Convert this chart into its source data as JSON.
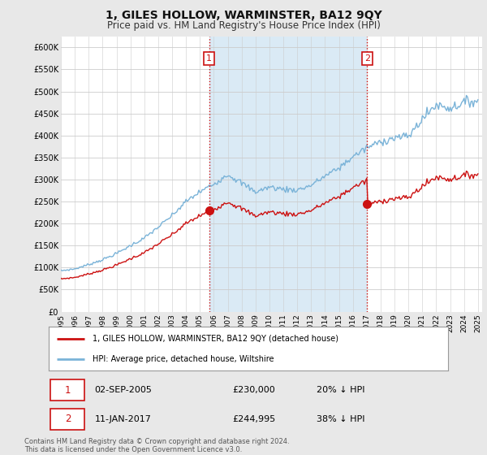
{
  "title": "1, GILES HOLLOW, WARMINSTER, BA12 9QY",
  "subtitle": "Price paid vs. HM Land Registry's House Price Index (HPI)",
  "title_fontsize": 10,
  "subtitle_fontsize": 8.5,
  "ylabel_ticks": [
    "£0",
    "£50K",
    "£100K",
    "£150K",
    "£200K",
    "£250K",
    "£300K",
    "£350K",
    "£400K",
    "£450K",
    "£500K",
    "£550K",
    "£600K"
  ],
  "ytick_values": [
    0,
    50000,
    100000,
    150000,
    200000,
    250000,
    300000,
    350000,
    400000,
    450000,
    500000,
    550000,
    600000
  ],
  "ylim": [
    0,
    625000
  ],
  "hpi_color": "#7ab3d8",
  "hpi_fill_color": "#daeaf5",
  "price_color": "#cc1111",
  "sale1_x": 2005.67,
  "sale1_y": 230000,
  "sale2_x": 2017.03,
  "sale2_y": 244995,
  "vline_color": "#cc1111",
  "box_color": "#cc1111",
  "background_color": "#e8e8e8",
  "plot_background": "#ffffff",
  "legend_label_red": "1, GILES HOLLOW, WARMINSTER, BA12 9QY (detached house)",
  "legend_label_blue": "HPI: Average price, detached house, Wiltshire",
  "footer": "Contains HM Land Registry data © Crown copyright and database right 2024.\nThis data is licensed under the Open Government Licence v3.0.",
  "xmin": 1995,
  "xmax": 2025,
  "xtick_years": [
    1995,
    1996,
    1997,
    1998,
    1999,
    2000,
    2001,
    2002,
    2003,
    2004,
    2005,
    2006,
    2007,
    2008,
    2009,
    2010,
    2011,
    2012,
    2013,
    2014,
    2015,
    2016,
    2017,
    2018,
    2019,
    2020,
    2021,
    2022,
    2023,
    2024,
    2025
  ]
}
